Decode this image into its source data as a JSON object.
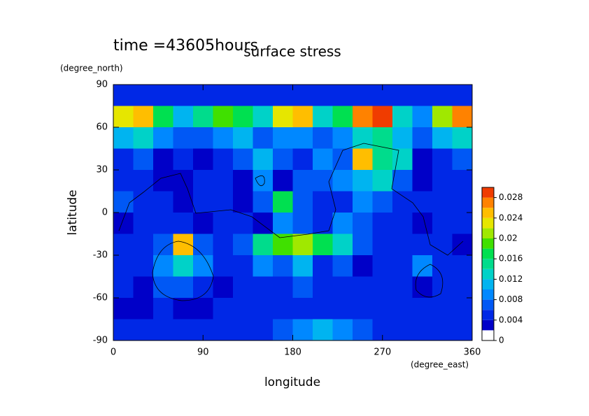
{
  "chart_data": {
    "type": "heatmap",
    "title": "surface stress",
    "subtitle": "time =43605hours",
    "xlabel": "longitude",
    "xunit": "(degree_east)",
    "ylabel": "latitude",
    "yunit": "(degree_north)",
    "xlim": [
      0,
      360
    ],
    "xticks": [
      0,
      90,
      180,
      270,
      360
    ],
    "ylim": [
      -90,
      90
    ],
    "yticks": [
      -90,
      -60,
      -30,
      0,
      30,
      60,
      90
    ],
    "values": [
      [
        0.004,
        0.004,
        0.004,
        0.004,
        0.004,
        0.004,
        0.004,
        0.004,
        0.004,
        0.004,
        0.004,
        0.004,
        0.004,
        0.004,
        0.004,
        0.004,
        0.004,
        0.004
      ],
      [
        0.022,
        0.024,
        0.016,
        0.01,
        0.014,
        0.018,
        0.016,
        0.012,
        0.022,
        0.024,
        0.012,
        0.016,
        0.026,
        0.028,
        0.012,
        0.008,
        0.02,
        0.026
      ],
      [
        0.01,
        0.012,
        0.008,
        0.006,
        0.006,
        0.008,
        0.01,
        0.006,
        0.008,
        0.008,
        0.006,
        0.008,
        0.012,
        0.014,
        0.01,
        0.006,
        0.01,
        0.012
      ],
      [
        0.004,
        0.006,
        0.002,
        0.004,
        0.002,
        0.004,
        0.006,
        0.01,
        0.006,
        0.004,
        0.008,
        0.006,
        0.024,
        0.014,
        0.012,
        0.002,
        0.004,
        0.006
      ],
      [
        0.004,
        0.004,
        0.002,
        0.002,
        0.004,
        0.004,
        0.002,
        0.008,
        0.002,
        0.006,
        0.006,
        0.008,
        0.01,
        0.012,
        0.006,
        0.002,
        0.004,
        0.004
      ],
      [
        0.006,
        0.004,
        0.004,
        0.002,
        0.004,
        0.004,
        0.002,
        0.006,
        0.016,
        0.006,
        0.004,
        0.004,
        0.008,
        0.006,
        0.004,
        0.004,
        0.004,
        0.004
      ],
      [
        0.002,
        0.004,
        0.004,
        0.004,
        0.002,
        0.004,
        0.004,
        0.002,
        0.008,
        0.006,
        0.004,
        0.008,
        0.006,
        0.004,
        0.004,
        0.002,
        0.004,
        0.004
      ],
      [
        0.004,
        0.004,
        0.006,
        0.024,
        0.006,
        0.004,
        0.006,
        0.014,
        0.018,
        0.02,
        0.016,
        0.012,
        0.006,
        0.004,
        0.004,
        0.004,
        0.004,
        0.002
      ],
      [
        0.004,
        0.004,
        0.008,
        0.012,
        0.008,
        0.004,
        0.004,
        0.008,
        0.006,
        0.01,
        0.004,
        0.006,
        0.002,
        0.004,
        0.004,
        0.008,
        0.004,
        0.004
      ],
      [
        0.004,
        0.002,
        0.006,
        0.006,
        0.004,
        0.002,
        0.004,
        0.004,
        0.004,
        0.006,
        0.004,
        0.004,
        0.004,
        0.004,
        0.004,
        0.002,
        0.004,
        0.004
      ],
      [
        0.002,
        0.002,
        0.004,
        0.002,
        0.002,
        0.004,
        0.004,
        0.004,
        0.004,
        0.004,
        0.004,
        0.004,
        0.004,
        0.004,
        0.004,
        0.004,
        0.004,
        0.004
      ],
      [
        0.004,
        0.004,
        0.004,
        0.004,
        0.004,
        0.004,
        0.004,
        0.004,
        0.006,
        0.008,
        0.01,
        0.008,
        0.006,
        0.004,
        0.004,
        0.004,
        0.004,
        0.004
      ]
    ],
    "colorbar": {
      "lim": [
        0,
        0.03
      ],
      "ticks": [
        0,
        0.004,
        0.008,
        0.012,
        0.016,
        0.02,
        0.024,
        0.028
      ],
      "colors": [
        "#ffffff",
        "#0000c8",
        "#0028e6",
        "#0058f5",
        "#0088ff",
        "#00b4f0",
        "#00d2c8",
        "#00dc8c",
        "#00e050",
        "#40e000",
        "#a0e800",
        "#e6e600",
        "#ffbe00",
        "#ff8200",
        "#f03c00"
      ]
    }
  }
}
